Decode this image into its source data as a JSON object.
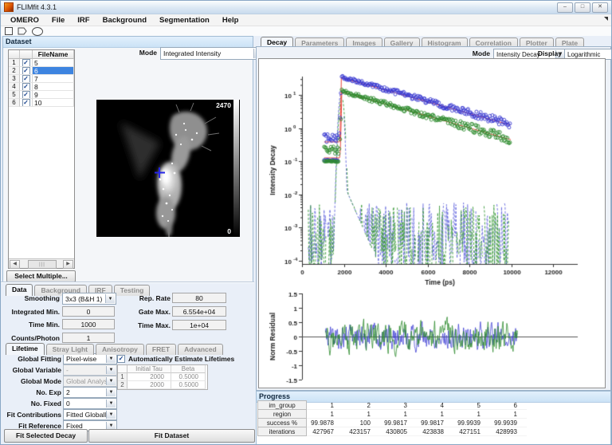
{
  "window": {
    "title": "FLIMfit 4.3.1"
  },
  "menu": {
    "items": [
      "OMERO",
      "File",
      "IRF",
      "Background",
      "Segmentation",
      "Help"
    ]
  },
  "toolbar": {
    "tools": [
      "rectangle-tool",
      "polygon-tool",
      "ellipse-tool"
    ]
  },
  "dataset": {
    "header": "Dataset",
    "mode_label": "Mode",
    "mode_value": "Integrated Intensity",
    "file_table": {
      "header": "FileName",
      "rows": [
        {
          "num": "1",
          "checked": true,
          "name": "5",
          "selected": false
        },
        {
          "num": "2",
          "checked": true,
          "name": "6",
          "selected": true
        },
        {
          "num": "3",
          "checked": true,
          "name": "7",
          "selected": false
        },
        {
          "num": "4",
          "checked": true,
          "name": "8",
          "selected": false
        },
        {
          "num": "5",
          "checked": true,
          "name": "9",
          "selected": false
        },
        {
          "num": "6",
          "checked": true,
          "name": "10",
          "selected": false
        }
      ]
    },
    "select_multiple_label": "Select Multiple...",
    "preview": {
      "colorbar_max": "2470",
      "colorbar_min": "0"
    }
  },
  "data_section": {
    "tabs": [
      "Data",
      "Background",
      "IRF",
      "Testing"
    ],
    "active_tab": "Data",
    "left_fields": [
      {
        "label": "Smoothing",
        "value": "3x3 (B&H 1)",
        "type": "dropdown"
      },
      {
        "label": "Integrated Min.",
        "value": "0",
        "type": "field"
      },
      {
        "label": "Time Min.",
        "value": "1000",
        "type": "field"
      },
      {
        "label": "Counts/Photon",
        "value": "1",
        "type": "field"
      }
    ],
    "right_fields": [
      {
        "label": "Rep. Rate",
        "value": "80"
      },
      {
        "label": "Gate Max.",
        "value": "6.554e+04"
      },
      {
        "label": "Time Max.",
        "value": "1e+04"
      }
    ]
  },
  "lifetime_section": {
    "tabs": [
      "Lifetime",
      "Stray Light",
      "Anisotropy",
      "FRET",
      "Advanced"
    ],
    "active_tab": "Lifetime",
    "rows": [
      {
        "label": "Global Fitting",
        "value": "Pixel-wise",
        "disabled": false
      },
      {
        "label": "Global Variable",
        "value": "-",
        "disabled": true
      },
      {
        "label": "Global Mode",
        "value": "Global Analysis",
        "disabled": true
      },
      {
        "label": "No. Exp",
        "value": "2",
        "disabled": false
      },
      {
        "label": "No. Fixed",
        "value": "0",
        "disabled": false
      },
      {
        "label": "Fit Contributions",
        "value": "Fitted Globally",
        "disabled": false
      },
      {
        "label": "Fit Reference",
        "value": "Fixed",
        "disabled": false
      }
    ],
    "auto_estimate_label": "Automatically Estimate Lifetimes",
    "auto_estimate_checked": true,
    "tau_table": {
      "columns": [
        "Initial Tau",
        "Beta"
      ],
      "rows": [
        {
          "num": "1",
          "tau": "2000",
          "beta": "0.5000"
        },
        {
          "num": "2",
          "tau": "2000",
          "beta": "0.5000"
        }
      ]
    }
  },
  "fit_buttons": {
    "fit_selected": "Fit Selected Decay",
    "fit_dataset": "Fit Dataset"
  },
  "decay_panel": {
    "tabs": [
      "Decay",
      "Parameters",
      "Images",
      "Gallery",
      "Histogram",
      "Correlation",
      "Plotter",
      "Plate"
    ],
    "active_tab": "Decay",
    "mode_label": "Mode",
    "mode_value": "Intensity Decay",
    "display_label": "Display",
    "display_value": "Logarithmic"
  },
  "progress": {
    "header": "Progress",
    "row_labels": [
      "im_group",
      "region",
      "success %",
      "iterations"
    ],
    "columns": [
      [
        "1",
        "1",
        "99.9878",
        "427967"
      ],
      [
        "2",
        "1",
        "100",
        "423157"
      ],
      [
        "3",
        "1",
        "99.9817",
        "430805"
      ],
      [
        "4",
        "1",
        "99.9817",
        "423838"
      ],
      [
        "5",
        "1",
        "99.9939",
        "427151"
      ],
      [
        "6",
        "1",
        "99.9939",
        "428993"
      ]
    ]
  },
  "chart_data": [
    {
      "type": "scatter",
      "title": "",
      "xlabel": "Time (ps)",
      "ylabel": "Intensity Decay",
      "x_ticks": [
        0,
        2000,
        4000,
        6000,
        8000,
        10000,
        12000
      ],
      "xlim": [
        0,
        12400
      ],
      "ylog": true,
      "y_decades": [
        1,
        0,
        -1,
        -2,
        -3,
        -4
      ],
      "ylim_exp": [
        -4,
        1.55
      ],
      "noise_seed": 20,
      "series": [
        {
          "name": "decay-blue",
          "role": "decay",
          "color": "#3a3ad0",
          "plateau": 0.5,
          "plateau_sigma": 0.3,
          "baseline": 0.105,
          "peak": 35,
          "peak_t": 1880,
          "tau": 2460,
          "t_start": 1060,
          "t_end": 9960,
          "t_step": 40,
          "sigma0": 0.05,
          "sigma1": 0.3
        },
        {
          "name": "decay-green",
          "role": "decay",
          "color": "#2e8b2e",
          "plateau": 0.22,
          "plateau_sigma": 0.28,
          "baseline": 0.098,
          "peak": 13,
          "peak_t": 1900,
          "tau": 2420,
          "t_start": 1060,
          "t_end": 9960,
          "t_step": 40,
          "sigma0": 0.06,
          "sigma1": 0.34
        },
        {
          "name": "fit-blue",
          "role": "fit",
          "color": "#e8423a",
          "plateau": 0.38,
          "peak": 33,
          "peak_t": 1880,
          "tau": 2460,
          "rise_t": 1780
        },
        {
          "name": "fit-green",
          "role": "fit",
          "color": "#e8423a",
          "plateau": 0.125,
          "peak": 12.5,
          "peak_t": 1900,
          "tau": 2420,
          "rise_t": 1790
        },
        {
          "name": "irf-blue",
          "role": "irf",
          "color": "#6468de",
          "peak": 12,
          "peak_t": 1870,
          "peak_sigma": 75,
          "floor_exp": -3.35,
          "floor_spread": 1.1,
          "t_start": 300,
          "t_end": 9900,
          "t_step": 28,
          "gap_p": 0.1
        },
        {
          "name": "irf-green",
          "role": "irf",
          "color": "#3a9a3a",
          "peak": 9,
          "peak_t": 1895,
          "peak_sigma": 80,
          "floor_exp": -3.45,
          "floor_spread": 1.15,
          "t_start": 300,
          "t_end": 9900,
          "t_step": 28,
          "gap_p": 0.1
        }
      ]
    },
    {
      "type": "line",
      "ylabel": "Norm Residual",
      "y_ticks": [
        1.5,
        1,
        0.5,
        0,
        -0.5,
        -1,
        -1.5
      ],
      "ylim": [
        -1.5,
        1.5
      ],
      "t_start": 1120,
      "t_end": 10300,
      "t_step": 30,
      "zero_line": true,
      "noise_seed": 5,
      "series": [
        {
          "name": "residual-blue",
          "color": "#4242d4",
          "amp": 0.4,
          "ar": 0.45
        },
        {
          "name": "residual-green",
          "color": "#2e8b2e",
          "amp": 0.45,
          "ar": 0.45
        }
      ]
    }
  ]
}
